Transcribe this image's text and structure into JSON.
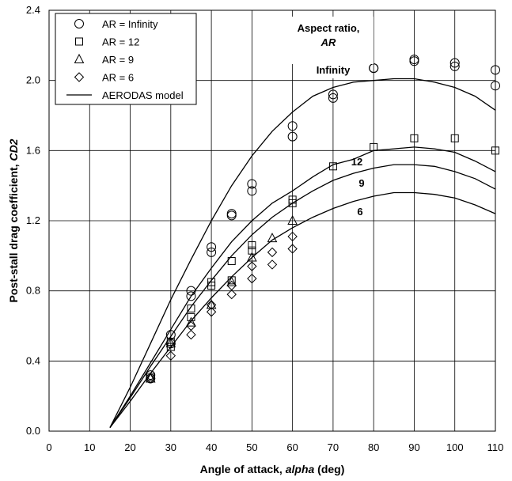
{
  "chart_data": {
    "type": "scatter",
    "xlabel_prefix": "Angle of attack, ",
    "xlabel_var": "alpha",
    "xlabel_suffix": " (deg)",
    "ylabel_prefix": "Post-stall drag coefficient, ",
    "ylabel_var": "CD2",
    "xlim": [
      0,
      110
    ],
    "ylim": [
      0,
      2.4
    ],
    "x_ticks": [
      0,
      10,
      20,
      30,
      40,
      50,
      60,
      70,
      80,
      90,
      100,
      110
    ],
    "y_ticks": [
      "0.0",
      "0.4",
      "0.8",
      "1.2",
      "1.6",
      "2.0",
      "2.4"
    ],
    "grid": true,
    "legend_placement": "top-left",
    "legend": [
      {
        "marker": "circle",
        "label": "AR = Infinity"
      },
      {
        "marker": "square",
        "label": "AR = 12"
      },
      {
        "marker": "triangle",
        "label": "AR = 9"
      },
      {
        "marker": "diamond",
        "label": "AR = 6"
      },
      {
        "marker": "line",
        "label": "AERODAS model"
      }
    ],
    "annotations": {
      "title_line1": "Aspect ratio,",
      "title_line2": "AR",
      "infinity": "Infinity",
      "ar12": "12",
      "ar9": "9",
      "ar6": "6"
    },
    "series": [
      {
        "marker": "circle",
        "points": [
          [
            25,
            0.32
          ],
          [
            25,
            0.3
          ],
          [
            30,
            0.55
          ],
          [
            30,
            0.5
          ],
          [
            35,
            0.8
          ],
          [
            35,
            0.77
          ],
          [
            40,
            1.05
          ],
          [
            40,
            1.02
          ],
          [
            45,
            1.24
          ],
          [
            45,
            1.23
          ],
          [
            50,
            1.41
          ],
          [
            50,
            1.37
          ],
          [
            60,
            1.74
          ],
          [
            60,
            1.68
          ],
          [
            70,
            1.92
          ],
          [
            70,
            1.9
          ],
          [
            80,
            2.07
          ],
          [
            80,
            2.07
          ],
          [
            90,
            2.12
          ],
          [
            90,
            2.11
          ],
          [
            100,
            2.1
          ],
          [
            100,
            2.08
          ],
          [
            110,
            2.06
          ],
          [
            110,
            1.97
          ]
        ]
      },
      {
        "marker": "square",
        "points": [
          [
            25,
            0.31
          ],
          [
            30,
            0.51
          ],
          [
            30,
            0.48
          ],
          [
            35,
            0.7
          ],
          [
            35,
            0.65
          ],
          [
            40,
            0.85
          ],
          [
            40,
            0.83
          ],
          [
            45,
            0.97
          ],
          [
            45,
            0.86
          ],
          [
            50,
            1.06
          ],
          [
            50,
            1.03
          ],
          [
            60,
            1.32
          ],
          [
            60,
            1.3
          ],
          [
            70,
            1.51
          ],
          [
            80,
            1.62
          ],
          [
            90,
            1.67
          ],
          [
            100,
            1.67
          ],
          [
            110,
            1.6
          ]
        ]
      },
      {
        "marker": "triangle",
        "points": [
          [
            25,
            0.3
          ],
          [
            30,
            0.5
          ],
          [
            35,
            0.62
          ],
          [
            40,
            0.72
          ],
          [
            45,
            0.85
          ],
          [
            50,
            0.99
          ],
          [
            55,
            1.1
          ],
          [
            60,
            1.2
          ]
        ]
      },
      {
        "marker": "diamond",
        "points": [
          [
            25,
            0.3
          ],
          [
            30,
            0.43
          ],
          [
            35,
            0.55
          ],
          [
            35,
            0.6
          ],
          [
            40,
            0.68
          ],
          [
            40,
            0.72
          ],
          [
            45,
            0.78
          ],
          [
            45,
            0.83
          ],
          [
            50,
            0.87
          ],
          [
            50,
            0.94
          ],
          [
            55,
            0.95
          ],
          [
            55,
            1.02
          ],
          [
            60,
            1.04
          ],
          [
            60,
            1.11
          ]
        ]
      }
    ],
    "model_curves": [
      {
        "name": "Infinity",
        "points": [
          [
            15,
            0.02
          ],
          [
            20,
            0.25
          ],
          [
            25,
            0.5
          ],
          [
            30,
            0.75
          ],
          [
            35,
            0.98
          ],
          [
            40,
            1.2
          ],
          [
            45,
            1.4
          ],
          [
            50,
            1.57
          ],
          [
            55,
            1.71
          ],
          [
            60,
            1.82
          ],
          [
            65,
            1.91
          ],
          [
            70,
            1.96
          ],
          [
            75,
            1.99
          ],
          [
            80,
            2.0
          ],
          [
            85,
            2.01
          ],
          [
            90,
            2.01
          ],
          [
            95,
            1.99
          ],
          [
            100,
            1.96
          ],
          [
            105,
            1.91
          ],
          [
            110,
            1.83
          ]
        ]
      },
      {
        "name": "12",
        "points": [
          [
            15,
            0.02
          ],
          [
            20,
            0.2
          ],
          [
            25,
            0.39
          ],
          [
            30,
            0.58
          ],
          [
            35,
            0.77
          ],
          [
            40,
            0.93
          ],
          [
            45,
            1.08
          ],
          [
            50,
            1.2
          ],
          [
            55,
            1.3
          ],
          [
            60,
            1.37
          ],
          [
            65,
            1.45
          ],
          [
            70,
            1.52
          ],
          [
            75,
            1.55
          ],
          [
            80,
            1.6
          ],
          [
            85,
            1.61
          ],
          [
            90,
            1.62
          ],
          [
            95,
            1.61
          ],
          [
            100,
            1.59
          ],
          [
            105,
            1.54
          ],
          [
            110,
            1.48
          ]
        ]
      },
      {
        "name": "9",
        "points": [
          [
            15,
            0.02
          ],
          [
            20,
            0.19
          ],
          [
            25,
            0.37
          ],
          [
            30,
            0.54
          ],
          [
            35,
            0.71
          ],
          [
            40,
            0.86
          ],
          [
            45,
            1.0
          ],
          [
            50,
            1.12
          ],
          [
            55,
            1.22
          ],
          [
            60,
            1.3
          ],
          [
            65,
            1.37
          ],
          [
            70,
            1.43
          ],
          [
            75,
            1.47
          ],
          [
            80,
            1.5
          ],
          [
            85,
            1.52
          ],
          [
            90,
            1.52
          ],
          [
            95,
            1.51
          ],
          [
            100,
            1.48
          ],
          [
            105,
            1.44
          ],
          [
            110,
            1.38
          ]
        ]
      },
      {
        "name": "6",
        "points": [
          [
            15,
            0.02
          ],
          [
            20,
            0.17
          ],
          [
            25,
            0.33
          ],
          [
            30,
            0.48
          ],
          [
            35,
            0.63
          ],
          [
            40,
            0.76
          ],
          [
            45,
            0.88
          ],
          [
            50,
            0.99
          ],
          [
            55,
            1.09
          ],
          [
            60,
            1.16
          ],
          [
            65,
            1.22
          ],
          [
            70,
            1.27
          ],
          [
            75,
            1.31
          ],
          [
            80,
            1.34
          ],
          [
            85,
            1.36
          ],
          [
            90,
            1.36
          ],
          [
            95,
            1.35
          ],
          [
            100,
            1.33
          ],
          [
            105,
            1.29
          ],
          [
            110,
            1.24
          ]
        ]
      }
    ]
  }
}
